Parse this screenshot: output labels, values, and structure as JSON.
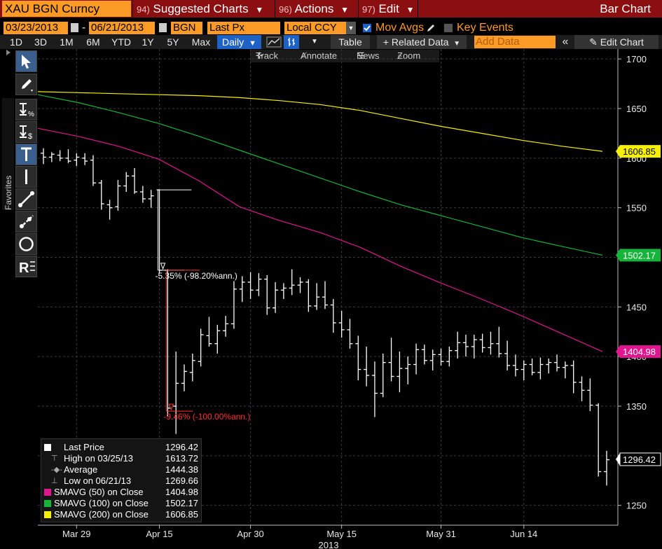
{
  "header": {
    "ticker": "XAU BGN Curncy",
    "menus": [
      {
        "num": "94)",
        "label": "Suggested Charts"
      },
      {
        "num": "96)",
        "label": "Actions"
      },
      {
        "num": "97)",
        "label": "Edit"
      }
    ],
    "chart_type": "Bar Chart"
  },
  "controls": {
    "start_date": "03/23/2013",
    "end_date": "06/21/2013",
    "source": "BGN",
    "field": "Last Px",
    "currency": "Local CCY",
    "mov_avgs_label": "Mov Avgs",
    "key_events_label": "Key Events",
    "mov_avgs_checked": true,
    "key_events_checked": false
  },
  "period_bar": {
    "periods": [
      "1D",
      "3D",
      "1M",
      "6M",
      "YTD",
      "1Y",
      "5Y",
      "Max"
    ],
    "frequency": "Daily",
    "table_label": "Table",
    "related_label": "+ Related Data",
    "add_data_placeholder": "Add Data",
    "edit_chart_label": "Edit Chart"
  },
  "chart_toolbar": {
    "track": "Track",
    "annotate": "Annotate",
    "news": "News",
    "zoom": "Zoom"
  },
  "palette": {
    "favorites_label": "Favorites",
    "tools": [
      "cursor-icon",
      "pen-icon",
      "percent-change-icon",
      "dollar-change-icon",
      "text-icon",
      "vertical-line-icon",
      "trendline-icon",
      "ray-icon",
      "circle-icon",
      "retracement-icon"
    ]
  },
  "legend": {
    "rows": [
      {
        "name": "Last Price",
        "value": "1296.42",
        "color": "#ffffff"
      },
      {
        "name": "High on 03/25/13",
        "value": "1613.72",
        "color": ""
      },
      {
        "name": "Average",
        "value": "1444.38",
        "color": ""
      },
      {
        "name": "Low on 06/21/13",
        "value": "1269.66",
        "color": ""
      },
      {
        "name": "SMAVG (50)  on Close",
        "value": "1404.98",
        "color": "#e0168f"
      },
      {
        "name": "SMAVG (100)  on Close",
        "value": "1502.17",
        "color": "#16b43a"
      },
      {
        "name": "SMAVG (200)  on Close",
        "value": "1606.85",
        "color": "#f7f000"
      }
    ]
  },
  "annotations": [
    {
      "text": "-5.35% (-98.20%ann.)",
      "color": "#ffffff"
    },
    {
      "text": "-9.46% (-100.00%ann.)",
      "color": "#ff3030"
    }
  ],
  "chart_data": {
    "type": "bar",
    "ylim": [
      1230,
      1710
    ],
    "y_ticks": [
      1250,
      1300,
      1350,
      1400,
      1450,
      1500,
      1550,
      1600,
      1650,
      1700
    ],
    "x_ticks": [
      {
        "label": "Mar 29",
        "index": 4
      },
      {
        "label": "Apr 15",
        "index": 14
      },
      {
        "label": "Apr 30",
        "index": 25
      },
      {
        "label": "May 15",
        "index": 36
      },
      {
        "label": "May 31",
        "index": 48
      },
      {
        "label": "Jun 14",
        "index": 58
      }
    ],
    "x_year": "2013",
    "ohlc": [
      {
        "o": 1605,
        "h": 1610,
        "l": 1594,
        "c": 1601
      },
      {
        "o": 1601,
        "h": 1606,
        "l": 1596,
        "c": 1604
      },
      {
        "o": 1603,
        "h": 1608,
        "l": 1597,
        "c": 1600
      },
      {
        "o": 1600,
        "h": 1609,
        "l": 1595,
        "c": 1597
      },
      {
        "o": 1598,
        "h": 1605,
        "l": 1592,
        "c": 1601
      },
      {
        "o": 1600,
        "h": 1605,
        "l": 1593,
        "c": 1597
      },
      {
        "o": 1598,
        "h": 1603,
        "l": 1572,
        "c": 1575
      },
      {
        "o": 1575,
        "h": 1578,
        "l": 1548,
        "c": 1554
      },
      {
        "o": 1553,
        "h": 1558,
        "l": 1538,
        "c": 1550
      },
      {
        "o": 1551,
        "h": 1578,
        "l": 1547,
        "c": 1572
      },
      {
        "o": 1572,
        "h": 1586,
        "l": 1566,
        "c": 1582
      },
      {
        "o": 1582,
        "h": 1590,
        "l": 1564,
        "c": 1566
      },
      {
        "o": 1566,
        "h": 1572,
        "l": 1555,
        "c": 1559
      },
      {
        "o": 1559,
        "h": 1568,
        "l": 1550,
        "c": 1562
      },
      {
        "o": 1568,
        "h": 1568,
        "l": 1484,
        "c": 1487
      },
      {
        "o": 1487,
        "h": 1488,
        "l": 1340,
        "c": 1348
      },
      {
        "o": 1350,
        "h": 1405,
        "l": 1322,
        "c": 1373
      },
      {
        "o": 1373,
        "h": 1392,
        "l": 1365,
        "c": 1385
      },
      {
        "o": 1384,
        "h": 1403,
        "l": 1375,
        "c": 1396
      },
      {
        "o": 1395,
        "h": 1428,
        "l": 1390,
        "c": 1422
      },
      {
        "o": 1421,
        "h": 1440,
        "l": 1410,
        "c": 1413
      },
      {
        "o": 1413,
        "h": 1432,
        "l": 1403,
        "c": 1426
      },
      {
        "o": 1426,
        "h": 1441,
        "l": 1420,
        "c": 1433
      },
      {
        "o": 1433,
        "h": 1476,
        "l": 1428,
        "c": 1468
      },
      {
        "o": 1468,
        "h": 1481,
        "l": 1455,
        "c": 1475
      },
      {
        "o": 1475,
        "h": 1485,
        "l": 1458,
        "c": 1467
      },
      {
        "o": 1467,
        "h": 1484,
        "l": 1461,
        "c": 1478
      },
      {
        "o": 1478,
        "h": 1482,
        "l": 1442,
        "c": 1449
      },
      {
        "o": 1449,
        "h": 1475,
        "l": 1444,
        "c": 1467
      },
      {
        "o": 1467,
        "h": 1474,
        "l": 1458,
        "c": 1469
      },
      {
        "o": 1469,
        "h": 1488,
        "l": 1462,
        "c": 1472
      },
      {
        "o": 1472,
        "h": 1480,
        "l": 1464,
        "c": 1475
      },
      {
        "o": 1475,
        "h": 1478,
        "l": 1445,
        "c": 1451
      },
      {
        "o": 1451,
        "h": 1474,
        "l": 1447,
        "c": 1460
      },
      {
        "o": 1460,
        "h": 1476,
        "l": 1448,
        "c": 1452
      },
      {
        "o": 1452,
        "h": 1458,
        "l": 1424,
        "c": 1434
      },
      {
        "o": 1434,
        "h": 1446,
        "l": 1419,
        "c": 1427
      },
      {
        "o": 1427,
        "h": 1438,
        "l": 1408,
        "c": 1413
      },
      {
        "o": 1413,
        "h": 1421,
        "l": 1376,
        "c": 1387
      },
      {
        "o": 1387,
        "h": 1410,
        "l": 1370,
        "c": 1381
      },
      {
        "o": 1381,
        "h": 1395,
        "l": 1339,
        "c": 1363
      },
      {
        "o": 1363,
        "h": 1403,
        "l": 1359,
        "c": 1394
      },
      {
        "o": 1394,
        "h": 1419,
        "l": 1375,
        "c": 1380
      },
      {
        "o": 1380,
        "h": 1405,
        "l": 1364,
        "c": 1388
      },
      {
        "o": 1388,
        "h": 1400,
        "l": 1372,
        "c": 1392
      },
      {
        "o": 1392,
        "h": 1413,
        "l": 1382,
        "c": 1407
      },
      {
        "o": 1407,
        "h": 1412,
        "l": 1392,
        "c": 1396
      },
      {
        "o": 1396,
        "h": 1407,
        "l": 1386,
        "c": 1402
      },
      {
        "o": 1402,
        "h": 1408,
        "l": 1391,
        "c": 1395
      },
      {
        "o": 1395,
        "h": 1410,
        "l": 1390,
        "c": 1406
      },
      {
        "o": 1406,
        "h": 1425,
        "l": 1398,
        "c": 1414
      },
      {
        "o": 1414,
        "h": 1422,
        "l": 1400,
        "c": 1410
      },
      {
        "o": 1410,
        "h": 1422,
        "l": 1398,
        "c": 1417
      },
      {
        "o": 1417,
        "h": 1423,
        "l": 1404,
        "c": 1409
      },
      {
        "o": 1409,
        "h": 1425,
        "l": 1402,
        "c": 1413
      },
      {
        "o": 1413,
        "h": 1430,
        "l": 1399,
        "c": 1403
      },
      {
        "o": 1403,
        "h": 1416,
        "l": 1386,
        "c": 1391
      },
      {
        "o": 1391,
        "h": 1402,
        "l": 1380,
        "c": 1387
      },
      {
        "o": 1387,
        "h": 1396,
        "l": 1376,
        "c": 1392
      },
      {
        "o": 1392,
        "h": 1398,
        "l": 1381,
        "c": 1384
      },
      {
        "o": 1384,
        "h": 1399,
        "l": 1377,
        "c": 1392
      },
      {
        "o": 1392,
        "h": 1398,
        "l": 1383,
        "c": 1394
      },
      {
        "o": 1394,
        "h": 1402,
        "l": 1385,
        "c": 1389
      },
      {
        "o": 1389,
        "h": 1395,
        "l": 1378,
        "c": 1391
      },
      {
        "o": 1391,
        "h": 1396,
        "l": 1363,
        "c": 1374
      },
      {
        "o": 1374,
        "h": 1380,
        "l": 1355,
        "c": 1366
      },
      {
        "o": 1366,
        "h": 1378,
        "l": 1345,
        "c": 1351
      },
      {
        "o": 1351,
        "h": 1353,
        "l": 1279,
        "c": 1284
      },
      {
        "o": 1284,
        "h": 1305,
        "l": 1270,
        "c": 1296
      }
    ],
    "series": [
      {
        "name": "SMAVG (200)  on Close",
        "color": "#f7f000",
        "last": 1606.85,
        "values": [
          1667,
          1666,
          1665,
          1664,
          1663,
          1661,
          1658,
          1654,
          1648,
          1640,
          1632,
          1625,
          1618,
          1612,
          1606.85
        ]
      },
      {
        "name": "SMAVG (100)  on Close",
        "color": "#16b43a",
        "last": 1502.17,
        "values": [
          1664,
          1656,
          1646,
          1635,
          1622,
          1608,
          1594,
          1580,
          1566,
          1553,
          1542,
          1531,
          1520,
          1511,
          1502.17
        ]
      },
      {
        "name": "SMAVG (50)  on Close",
        "color": "#e0168f",
        "last": 1404.98,
        "values": [
          1630,
          1622,
          1612,
          1599,
          1577,
          1551,
          1537,
          1525,
          1510,
          1491,
          1474,
          1458,
          1441,
          1423,
          1404.98
        ]
      }
    ],
    "last_price": 1296.42,
    "measure_lines": [
      {
        "from_index": 14,
        "from_value": 1568,
        "to_index": 15,
        "to_value": 1487,
        "color": "#ffffff"
      },
      {
        "from_index": 15,
        "from_value": 1487,
        "to_index": 16,
        "to_value": 1345,
        "color": "#ff3030"
      }
    ]
  }
}
